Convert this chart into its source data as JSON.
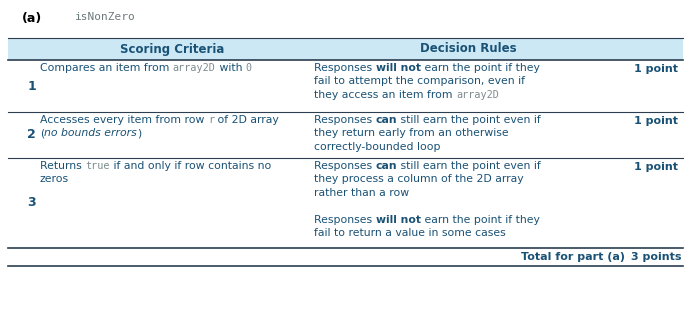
{
  "title_label": "(a)",
  "title_code": "isNonZero",
  "header_bg": "#cce8f4",
  "header_text_color": "#1a5276",
  "body_bg": "#ffffff",
  "text_color": "#1a5276",
  "code_color": "#7d8b8f",
  "figsize": [
    6.91,
    3.11
  ],
  "dpi": 100,
  "header": [
    "Scoring Criteria",
    "Decision Rules"
  ],
  "rows": [
    {
      "num": "1",
      "criteria_lines": [
        [
          {
            "text": "Compares an item from ",
            "style": "normal"
          },
          {
            "text": "array2D",
            "style": "code"
          },
          {
            "text": " with ",
            "style": "normal"
          },
          {
            "text": "0",
            "style": "code"
          }
        ]
      ],
      "decision_lines": [
        [
          {
            "text": "Responses ",
            "style": "normal"
          },
          {
            "text": "will not",
            "style": "bold"
          },
          {
            "text": " earn the point if they",
            "style": "normal"
          }
        ],
        [
          {
            "text": "fail to attempt the comparison, even if",
            "style": "normal"
          }
        ],
        [
          {
            "text": "they access an item from ",
            "style": "normal"
          },
          {
            "text": "array2D",
            "style": "code"
          }
        ]
      ],
      "points": "1 point"
    },
    {
      "num": "2",
      "criteria_lines": [
        [
          {
            "text": "Accesses every item from row ",
            "style": "normal"
          },
          {
            "text": "r",
            "style": "code"
          },
          {
            "text": " of 2D array",
            "style": "normal"
          }
        ],
        [
          {
            "text": "(",
            "style": "normal"
          },
          {
            "text": "no bounds errors",
            "style": "italic"
          },
          {
            "text": ")",
            "style": "normal"
          }
        ]
      ],
      "decision_lines": [
        [
          {
            "text": "Responses ",
            "style": "normal"
          },
          {
            "text": "can",
            "style": "bold"
          },
          {
            "text": " still earn the point even if",
            "style": "normal"
          }
        ],
        [
          {
            "text": "they return early from an otherwise",
            "style": "normal"
          }
        ],
        [
          {
            "text": "correctly-bounded loop",
            "style": "normal"
          }
        ]
      ],
      "points": "1 point"
    },
    {
      "num": "3",
      "criteria_lines": [
        [
          {
            "text": "Returns ",
            "style": "normal"
          },
          {
            "text": "true",
            "style": "code"
          },
          {
            "text": " if and only if row contains no",
            "style": "normal"
          }
        ],
        [
          {
            "text": "zeros",
            "style": "normal"
          }
        ]
      ],
      "decision_lines": [
        [
          {
            "text": "Responses ",
            "style": "normal"
          },
          {
            "text": "can",
            "style": "bold"
          },
          {
            "text": " still earn the point even if",
            "style": "normal"
          }
        ],
        [
          {
            "text": "they process a column of the 2D array",
            "style": "normal"
          }
        ],
        [
          {
            "text": "rather than a row",
            "style": "normal"
          }
        ],
        [
          {
            "text": "",
            "style": "normal"
          }
        ],
        [
          {
            "text": "Responses ",
            "style": "normal"
          },
          {
            "text": "will not",
            "style": "bold"
          },
          {
            "text": " earn the point if they",
            "style": "normal"
          }
        ],
        [
          {
            "text": "fail to return a value in some cases",
            "style": "normal"
          }
        ]
      ],
      "points": "1 point"
    }
  ],
  "footer_text": "Total for part (a)",
  "footer_points": "3 points"
}
